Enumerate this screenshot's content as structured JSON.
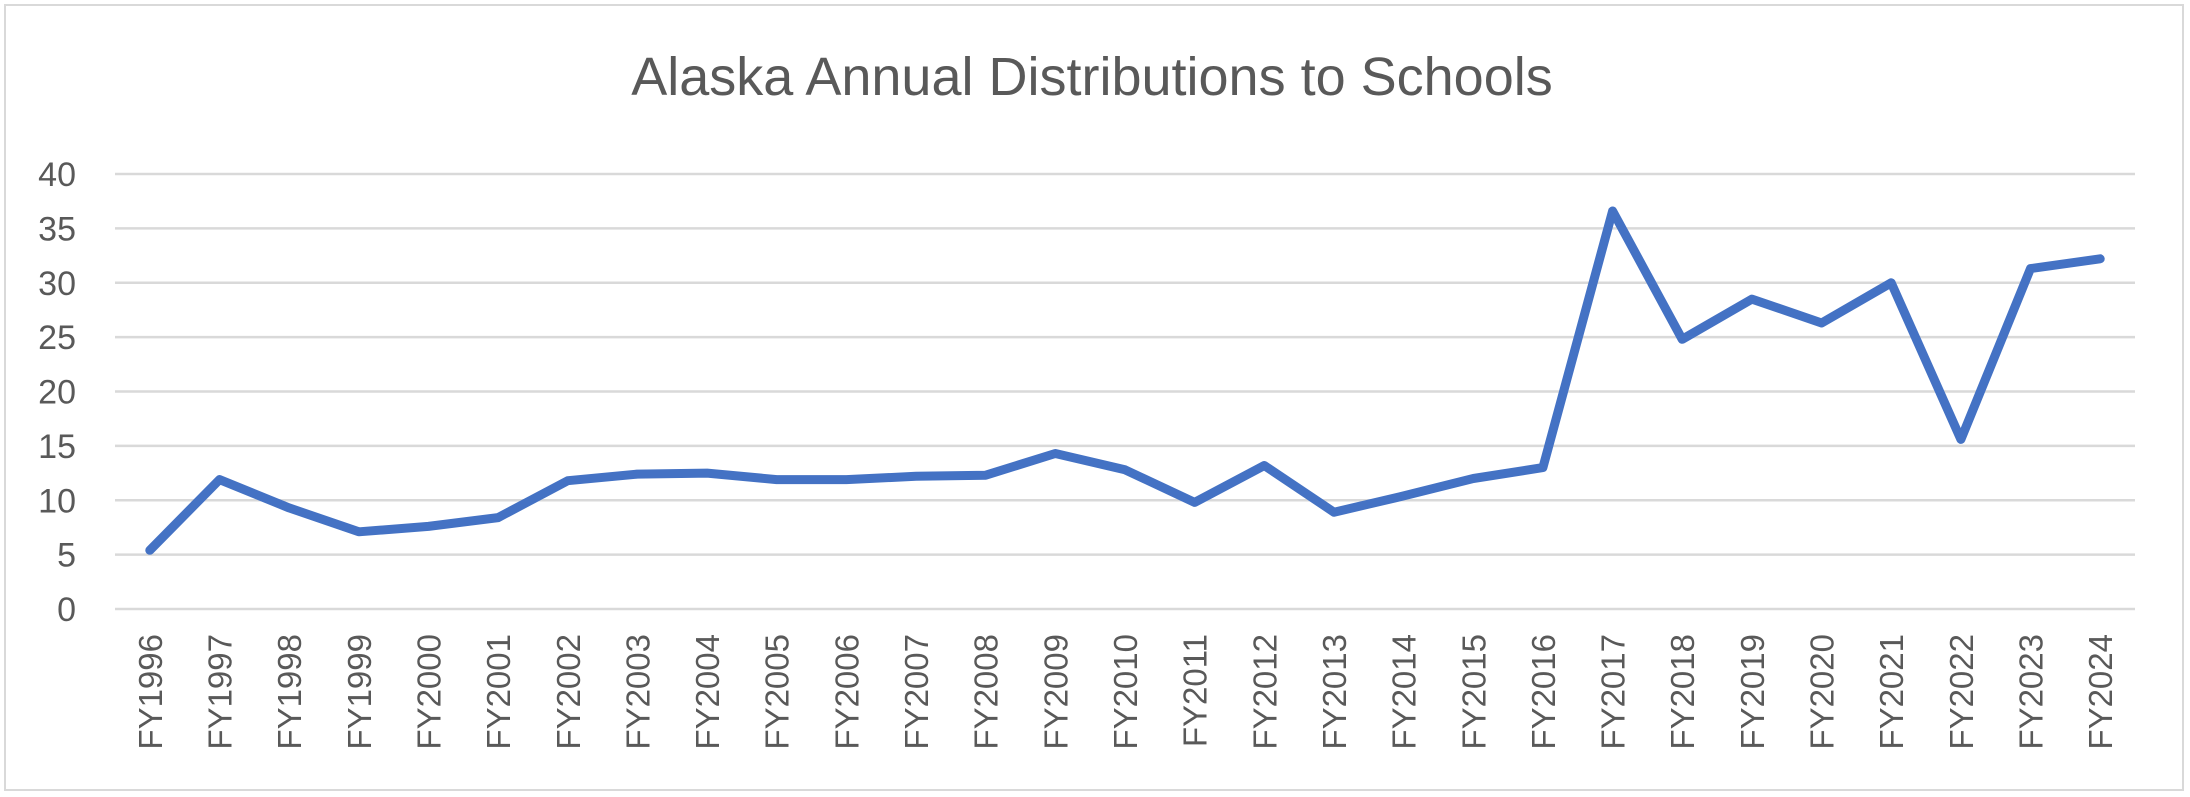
{
  "chart_data": {
    "type": "line",
    "title": "Alaska Annual Distributions to Schools",
    "xlabel": "",
    "ylabel": "",
    "ylim": [
      0,
      40
    ],
    "yticks": [
      0,
      5,
      10,
      15,
      20,
      25,
      30,
      35,
      40
    ],
    "grid": true,
    "legend": "none",
    "categories": [
      "FY1996",
      "FY1997",
      "FY1998",
      "FY1999",
      "FY2000",
      "FY2001",
      "FY2002",
      "FY2003",
      "FY2004",
      "FY2005",
      "FY2006",
      "FY2007",
      "FY2008",
      "FY2009",
      "FY2010",
      "FY2011",
      "FY2012",
      "FY2013",
      "FY2014",
      "FY2015",
      "FY2016",
      "FY2017",
      "FY2018",
      "FY2019",
      "FY2020",
      "FY2021",
      "FY2022",
      "FY2023",
      "FY2024"
    ],
    "series": [
      {
        "color": "#4472c4",
        "values": [
          5.4,
          11.9,
          9.3,
          7.1,
          7.6,
          8.4,
          11.8,
          12.4,
          12.5,
          11.9,
          11.9,
          12.2,
          12.3,
          14.3,
          12.8,
          9.8,
          13.2,
          8.9,
          10.4,
          12.0,
          13.0,
          36.6,
          24.8,
          28.5,
          26.3,
          30.0,
          15.6,
          31.3,
          32.2
        ]
      }
    ]
  },
  "colors": {
    "gridline": "#d9d9d9",
    "text": "#595959",
    "series": "#4472c4"
  }
}
